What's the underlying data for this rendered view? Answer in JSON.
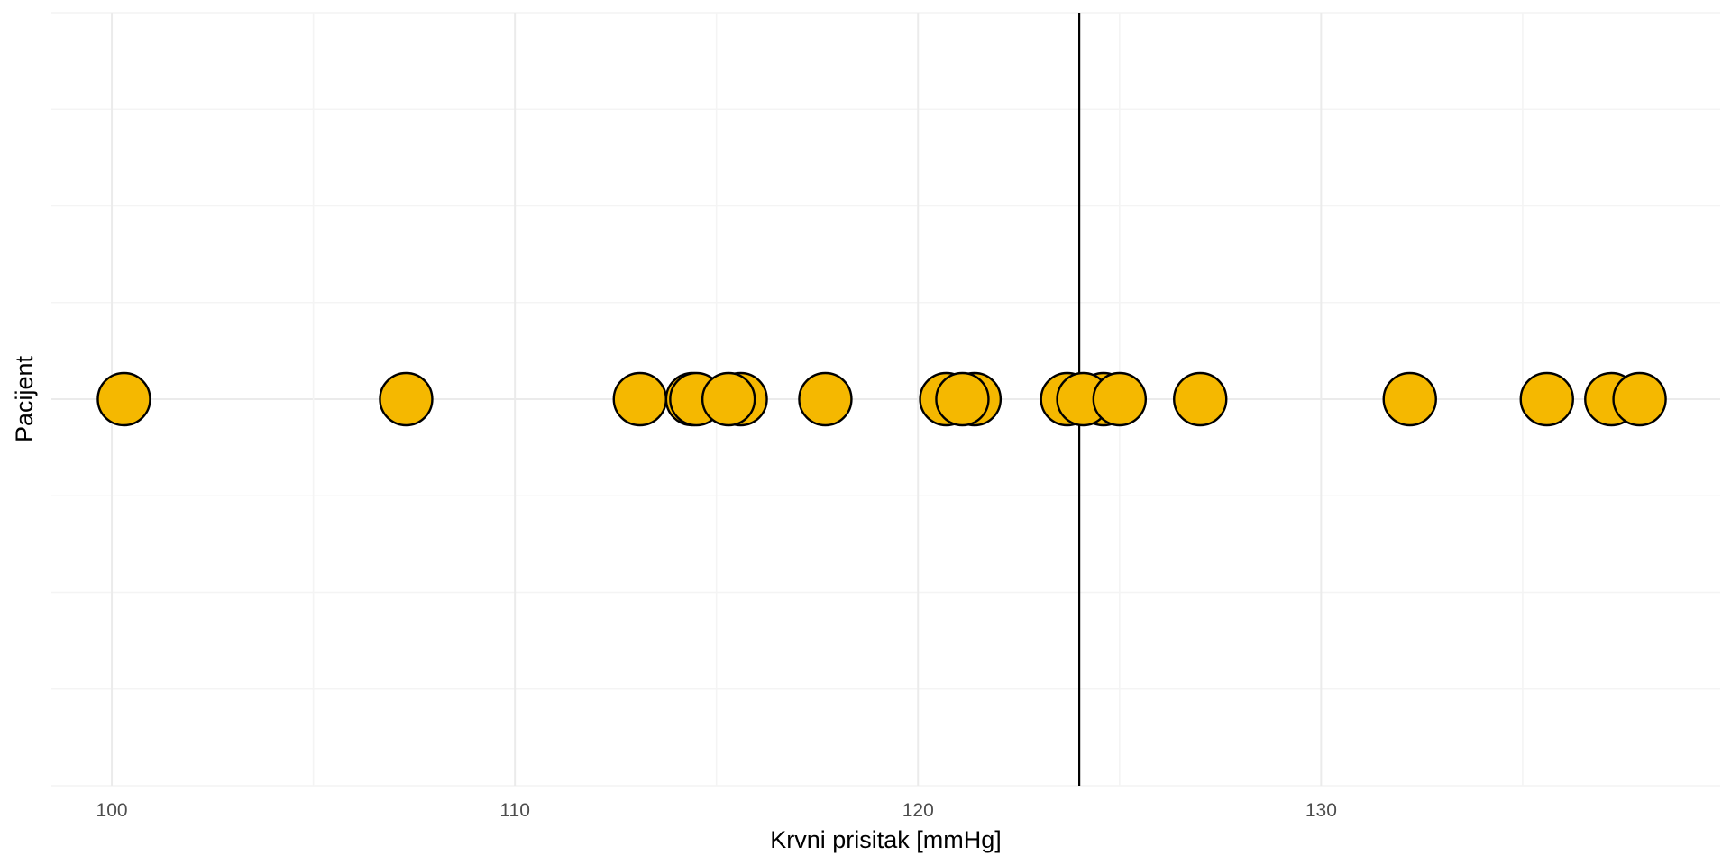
{
  "chart_data": {
    "type": "scatter",
    "title": "",
    "xlabel": "Krvni prisitak [mmHg]",
    "ylabel": "Pacijent",
    "xlim": [
      98.5,
      139.9
    ],
    "x_ticks": [
      100,
      110,
      120,
      130
    ],
    "x_tick_labels": [
      "100",
      "110",
      "120",
      "130"
    ],
    "grid": true,
    "legend": "none",
    "series": [
      {
        "x": [
          100.3,
          107.3,
          113.1,
          114.4,
          114.5,
          115.6,
          115.3,
          117.7,
          120.7,
          121.4,
          121.1,
          123.7,
          124.6,
          124.1,
          125.0,
          127.0,
          132.2,
          135.6,
          137.2,
          137.9
        ],
        "y": [
          0,
          0,
          0,
          0,
          0,
          0,
          0,
          0,
          0,
          0,
          0,
          0,
          0,
          0,
          0,
          0,
          0,
          0,
          0,
          0
        ]
      }
    ],
    "reference_line_x": 124.0,
    "colors": {
      "point_fill": "#F5B800",
      "point_stroke": "#000000",
      "reference_line": "#000000",
      "grid_major": "#EBEBEB",
      "grid_minor": "#F4F4F4",
      "background": "#FFFFFF"
    }
  }
}
